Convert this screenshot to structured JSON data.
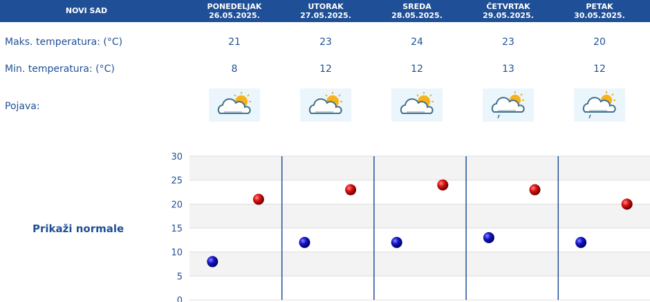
{
  "location": "NOVI SAD",
  "days": [
    {
      "name": "PONEDELJAK",
      "date": "26.05.2025.",
      "max": "21",
      "min": "8",
      "icon": "partly-cloudy-icon"
    },
    {
      "name": "UTORAK",
      "date": "27.05.2025.",
      "max": "23",
      "min": "12",
      "icon": "partly-cloudy-icon"
    },
    {
      "name": "SREDA",
      "date": "28.05.2025.",
      "max": "24",
      "min": "12",
      "icon": "partly-cloudy-icon"
    },
    {
      "name": "ČETVRTAK",
      "date": "29.05.2025.",
      "max": "23",
      "min": "13",
      "icon": "partly-cloudy-rain-icon"
    },
    {
      "name": "PETAK",
      "date": "30.05.2025.",
      "max": "20",
      "min": "12",
      "icon": "partly-cloudy-rain-icon"
    }
  ],
  "labels": {
    "max": "Maks. temperatura: (°C)",
    "min": "Min. temperatura: (°C)",
    "phenomenon": "Pojava:",
    "show_normals": "Prikaži normale"
  },
  "colors": {
    "header": "#1f4f96",
    "text": "#1f4f96",
    "max_marker": "#cc0000",
    "min_marker": "#0a0aa8"
  },
  "chart_data": {
    "type": "scatter",
    "categories": [
      "26.05.2025.",
      "27.05.2025.",
      "28.05.2025.",
      "29.05.2025.",
      "30.05.2025."
    ],
    "series": [
      {
        "values": [
          21,
          23,
          24,
          23,
          20
        ]
      },
      {
        "values": [
          8,
          12,
          12,
          13,
          12
        ]
      }
    ],
    "y_ticks": [
      "0",
      "5",
      "10",
      "15",
      "20",
      "25",
      "30"
    ],
    "ylim": [
      0,
      30
    ],
    "grid": true
  }
}
